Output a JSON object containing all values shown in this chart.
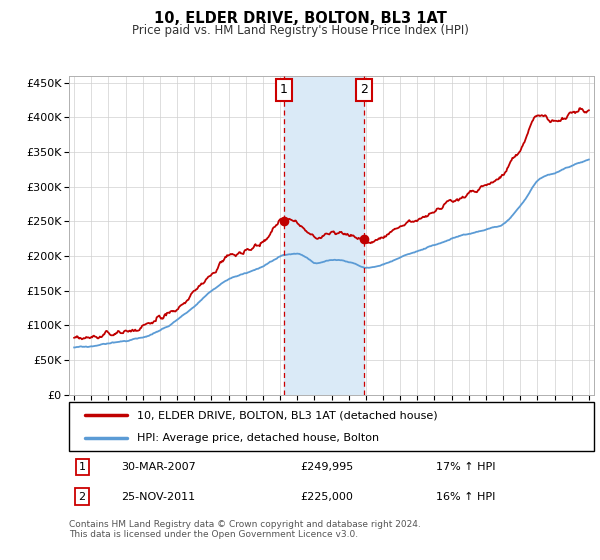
{
  "title": "10, ELDER DRIVE, BOLTON, BL3 1AT",
  "subtitle": "Price paid vs. HM Land Registry's House Price Index (HPI)",
  "legend_line1": "10, ELDER DRIVE, BOLTON, BL3 1AT (detached house)",
  "legend_line2": "HPI: Average price, detached house, Bolton",
  "sale1_label": "1",
  "sale1_date": "30-MAR-2007",
  "sale1_price": "£249,995",
  "sale1_hpi": "17% ↑ HPI",
  "sale2_label": "2",
  "sale2_date": "25-NOV-2011",
  "sale2_price": "£225,000",
  "sale2_hpi": "16% ↑ HPI",
  "footer": "Contains HM Land Registry data © Crown copyright and database right 2024.\nThis data is licensed under the Open Government Licence v3.0.",
  "hpi_color": "#5b9bd5",
  "price_color": "#c00000",
  "span_color": "#daeaf7",
  "sale1_year": 2007.23,
  "sale2_year": 2011.9,
  "sale1_price_val": 249995,
  "sale2_price_val": 225000,
  "ylim": [
    0,
    460000
  ],
  "xlim_start": 1994.7,
  "xlim_end": 2025.3,
  "yticks": [
    0,
    50000,
    100000,
    150000,
    200000,
    250000,
    300000,
    350000,
    400000,
    450000
  ],
  "ytick_labels": [
    "£0",
    "£50K",
    "£100K",
    "£150K",
    "£200K",
    "£250K",
    "£300K",
    "£350K",
    "£400K",
    "£450K"
  ],
  "xtick_years": [
    1995,
    1996,
    1997,
    1998,
    1999,
    2000,
    2001,
    2002,
    2003,
    2004,
    2005,
    2006,
    2007,
    2008,
    2009,
    2010,
    2011,
    2012,
    2013,
    2014,
    2015,
    2016,
    2017,
    2018,
    2019,
    2020,
    2021,
    2022,
    2023,
    2024,
    2025
  ],
  "hpi_anchors_years": [
    1995,
    1996,
    1997,
    1998,
    1999,
    2000,
    2001,
    2002,
    2003,
    2004,
    2005,
    2006,
    2007,
    2008,
    2009,
    2010,
    2011,
    2012,
    2013,
    2014,
    2015,
    2016,
    2017,
    2018,
    2019,
    2020,
    2021,
    2022,
    2023,
    2024,
    2025
  ],
  "hpi_anchors_vals": [
    68000,
    70000,
    74000,
    78000,
    82000,
    92000,
    108000,
    128000,
    150000,
    168000,
    175000,
    185000,
    200000,
    205000,
    190000,
    195000,
    192000,
    182000,
    188000,
    198000,
    207000,
    216000,
    225000,
    232000,
    238000,
    245000,
    272000,
    310000,
    320000,
    330000,
    340000
  ],
  "price_anchors_years": [
    1995,
    1996,
    1997,
    1998,
    1999,
    2000,
    2001,
    2002,
    2003,
    2004,
    2005,
    2006,
    2007,
    2008,
    2009,
    2010,
    2011,
    2012,
    2013,
    2014,
    2015,
    2016,
    2017,
    2018,
    2019,
    2020,
    2021,
    2022,
    2023,
    2024,
    2025
  ],
  "price_anchors_vals": [
    80000,
    82000,
    86000,
    92000,
    97000,
    110000,
    125000,
    148000,
    175000,
    200000,
    208000,
    218000,
    252000,
    250000,
    225000,
    235000,
    230000,
    218000,
    228000,
    242000,
    252000,
    265000,
    278000,
    290000,
    302000,
    315000,
    355000,
    405000,
    395000,
    405000,
    410000
  ]
}
